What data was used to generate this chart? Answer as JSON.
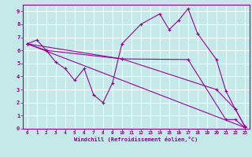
{
  "background_color": "#c5e8e8",
  "line_color": "#990099",
  "grid_color": "#ffffff",
  "xlabel": "Windchill (Refroidissement éolien,°C)",
  "xlabel_color": "#880088",
  "ylabel_color": "#880088",
  "ylim": [
    0,
    9.5
  ],
  "xlim": [
    -0.5,
    23.5
  ],
  "yticks": [
    0,
    1,
    2,
    3,
    4,
    5,
    6,
    7,
    8,
    9
  ],
  "xticks": [
    0,
    1,
    2,
    3,
    4,
    5,
    6,
    7,
    8,
    9,
    10,
    11,
    12,
    13,
    14,
    15,
    16,
    17,
    18,
    19,
    20,
    21,
    22,
    23
  ],
  "lines": [
    {
      "x": [
        0,
        1,
        2,
        3,
        4,
        5,
        6,
        7,
        8,
        9,
        10,
        12,
        14,
        15,
        16,
        17,
        18,
        20,
        21,
        22,
        23
      ],
      "y": [
        6.5,
        6.8,
        6.0,
        5.1,
        4.6,
        3.7,
        4.6,
        2.6,
        2.0,
        3.5,
        6.5,
        8.0,
        8.8,
        7.6,
        8.3,
        9.2,
        7.3,
        5.3,
        2.9,
        1.5,
        0.2
      ]
    },
    {
      "x": [
        0,
        10,
        17,
        21,
        22,
        23
      ],
      "y": [
        6.5,
        5.35,
        5.3,
        0.7,
        0.7,
        0.1
      ]
    },
    {
      "x": [
        0,
        2,
        10,
        20,
        22,
        23
      ],
      "y": [
        6.5,
        6.0,
        5.35,
        3.0,
        1.5,
        0.2
      ]
    },
    {
      "x": [
        0,
        23
      ],
      "y": [
        6.5,
        0.1
      ]
    }
  ]
}
